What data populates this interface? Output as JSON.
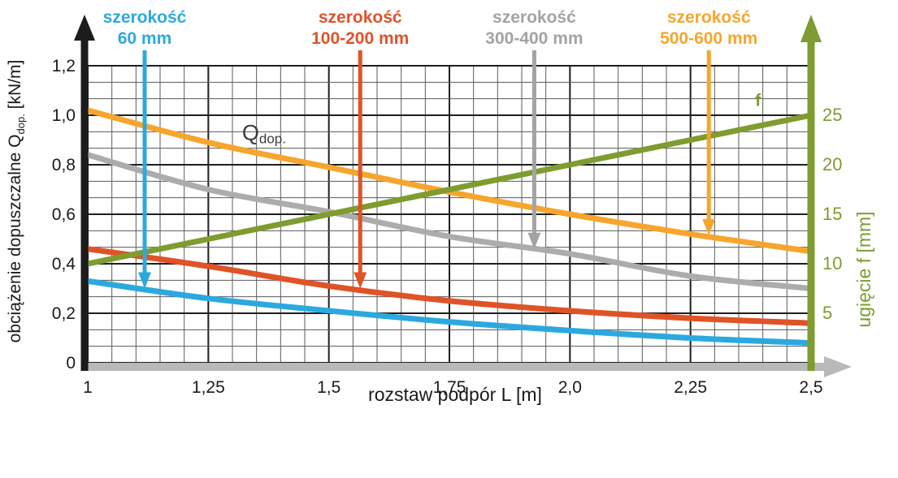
{
  "page": {
    "background": "#FFFFFF"
  },
  "chart_data": {
    "type": "line",
    "title": "",
    "x_label": "rozstaw podpór L [m]",
    "y_left_label": "obciążenie dopuszczalne Qdop. [kN/m]",
    "y_left_label_parts": {
      "main": "obciążenie dopuszczalne Q",
      "sub": "dop.",
      "tail": " [kN/m]"
    },
    "y_right_label": "ugięcie f [mm]",
    "x_range": [
      1.0,
      2.5
    ],
    "y_left_range": [
      0,
      1.2
    ],
    "y_right_range": [
      0,
      30
    ],
    "grid": {
      "on": true,
      "x_minor_step": 0.05,
      "x_major_every": 5,
      "y_minor_count": 18,
      "y_major_every": 3
    },
    "x_ticks": {
      "values": [
        1.0,
        1.25,
        1.5,
        1.75,
        2.0,
        2.25,
        2.5
      ],
      "labels": [
        "1",
        "1,25",
        "1,5",
        "1,75",
        "2,0",
        "2,25",
        "2,5"
      ]
    },
    "y_left_ticks": {
      "values": [
        0,
        0.2,
        0.4,
        0.6,
        0.8,
        1.0,
        1.2
      ],
      "labels": [
        "0",
        "0,2",
        "0,4",
        "0,6",
        "0,8",
        "1,0",
        "1,2"
      ]
    },
    "y_right_ticks": {
      "values": [
        5,
        10,
        15,
        20,
        25
      ],
      "labels": [
        "5",
        "10",
        "15",
        "20",
        "25"
      ]
    },
    "x": [
      1.0,
      1.25,
      1.5,
      1.75,
      2.0,
      2.25,
      2.5
    ],
    "series": [
      {
        "id": "s60",
        "name": "szerokość 60 mm",
        "axis": "left",
        "color": "#2BA9DF",
        "values": [
          0.33,
          0.26,
          0.21,
          0.165,
          0.13,
          0.1,
          0.08
        ]
      },
      {
        "id": "s100200",
        "name": "szerokość 100-200 mm",
        "axis": "left",
        "color": "#DF5327",
        "values": [
          0.46,
          0.39,
          0.31,
          0.25,
          0.21,
          0.18,
          0.16
        ]
      },
      {
        "id": "s300400",
        "name": "szerokość 300-400 mm",
        "axis": "left",
        "color": "#ACACAC",
        "values": [
          0.84,
          0.7,
          0.61,
          0.51,
          0.44,
          0.35,
          0.3
        ]
      },
      {
        "id": "s500600",
        "name": "szerokość 500-600 mm",
        "axis": "left",
        "color": "#F7A52C",
        "values": [
          1.02,
          0.89,
          0.79,
          0.69,
          0.6,
          0.52,
          0.45
        ]
      },
      {
        "id": "f",
        "name": "f",
        "axis": "right",
        "color": "#7E9C30",
        "values": [
          10,
          12.5,
          15,
          17.5,
          20,
          22.5,
          25
        ]
      }
    ],
    "callouts": [
      {
        "label_line1": "szerokość",
        "label_line2": "60 mm",
        "color": "#2BA9DF",
        "x": 1.118,
        "points_to_left_value": 0.3
      },
      {
        "label_line1": "szerokość",
        "label_line2": "100-200 mm",
        "color": "#DF5327",
        "x": 1.565,
        "points_to_left_value": 0.3
      },
      {
        "label_line1": "szerokość",
        "label_line2": "300-400 mm",
        "color": "#A3A3A3",
        "x": 1.926,
        "points_to_left_value": 0.46
      },
      {
        "label_line1": "szerokość",
        "label_line2": "500-600 mm",
        "color": "#F7A52C",
        "x": 2.288,
        "points_to_left_value": 0.515
      }
    ],
    "curve_labels": {
      "qdop": {
        "main": "Q",
        "sub": "dop.",
        "x": 1.32,
        "y_left": 0.93,
        "color": "#3C3C3C"
      },
      "f": {
        "text": "f",
        "x": 2.39,
        "y_right": 26.5,
        "color": "#7E9C30"
      }
    },
    "colors": {
      "left_axis": "#1C1C1C",
      "bottom_axis": "#B9B9B9",
      "right_axis": "#7E9C30",
      "grid_minor": "#5A5A5A",
      "grid_major": "#1E1E1E",
      "tick_text": "#1A1A1A"
    },
    "legend_position": "top",
    "axes_arrows": true
  }
}
